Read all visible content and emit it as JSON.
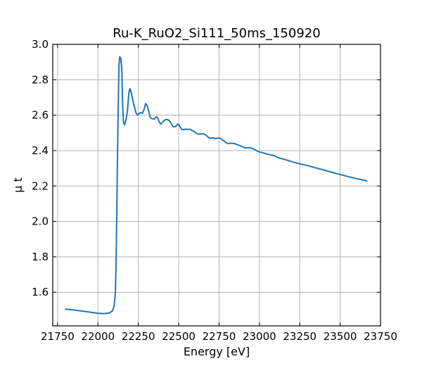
{
  "chart_data": {
    "type": "line",
    "title": "Ru-K_RuO2_Si111_50ms_150920",
    "xlabel": "Energy [eV]",
    "ylabel": "μ t",
    "xlim": [
      21720,
      23750
    ],
    "ylim": [
      1.41,
      3.0
    ],
    "xticks": [
      21750,
      22000,
      22250,
      22500,
      22750,
      23000,
      23250,
      23500,
      23750
    ],
    "yticks": [
      1.6,
      1.8,
      2.0,
      2.2,
      2.4,
      2.6,
      2.8,
      3.0
    ],
    "grid": true,
    "series": [
      {
        "color": "#1f77b4",
        "points": [
          [
            21800,
            1.505
          ],
          [
            21900,
            1.494
          ],
          [
            22000,
            1.481
          ],
          [
            22040,
            1.479
          ],
          [
            22070,
            1.483
          ],
          [
            22090,
            1.495
          ],
          [
            22100,
            1.52
          ],
          [
            22108,
            1.6
          ],
          [
            22112,
            1.75
          ],
          [
            22116,
            2.0
          ],
          [
            22120,
            2.3
          ],
          [
            22125,
            2.6
          ],
          [
            22130,
            2.88
          ],
          [
            22135,
            2.93
          ],
          [
            22142,
            2.92
          ],
          [
            22148,
            2.85
          ],
          [
            22153,
            2.65
          ],
          [
            22158,
            2.56
          ],
          [
            22165,
            2.545
          ],
          [
            22175,
            2.58
          ],
          [
            22182,
            2.62
          ],
          [
            22192,
            2.73
          ],
          [
            22198,
            2.75
          ],
          [
            22205,
            2.73
          ],
          [
            22215,
            2.69
          ],
          [
            22225,
            2.65
          ],
          [
            22235,
            2.615
          ],
          [
            22245,
            2.6
          ],
          [
            22255,
            2.61
          ],
          [
            22265,
            2.615
          ],
          [
            22275,
            2.61
          ],
          [
            22285,
            2.63
          ],
          [
            22295,
            2.665
          ],
          [
            22305,
            2.655
          ],
          [
            22315,
            2.62
          ],
          [
            22325,
            2.585
          ],
          [
            22335,
            2.58
          ],
          [
            22350,
            2.578
          ],
          [
            22360,
            2.59
          ],
          [
            22370,
            2.585
          ],
          [
            22380,
            2.56
          ],
          [
            22390,
            2.55
          ],
          [
            22400,
            2.56
          ],
          [
            22410,
            2.57
          ],
          [
            22420,
            2.575
          ],
          [
            22430,
            2.575
          ],
          [
            22440,
            2.57
          ],
          [
            22450,
            2.56
          ],
          [
            22465,
            2.535
          ],
          [
            22480,
            2.535
          ],
          [
            22495,
            2.55
          ],
          [
            22505,
            2.54
          ],
          [
            22520,
            2.518
          ],
          [
            22540,
            2.52
          ],
          [
            22570,
            2.52
          ],
          [
            22590,
            2.51
          ],
          [
            22620,
            2.492
          ],
          [
            22650,
            2.495
          ],
          [
            22665,
            2.49
          ],
          [
            22690,
            2.47
          ],
          [
            22710,
            2.472
          ],
          [
            22730,
            2.468
          ],
          [
            22750,
            2.472
          ],
          [
            22770,
            2.462
          ],
          [
            22800,
            2.44
          ],
          [
            22830,
            2.442
          ],
          [
            22850,
            2.438
          ],
          [
            22880,
            2.428
          ],
          [
            22910,
            2.415
          ],
          [
            22940,
            2.416
          ],
          [
            22960,
            2.412
          ],
          [
            22990,
            2.395
          ],
          [
            23050,
            2.38
          ],
          [
            23090,
            2.372
          ],
          [
            23120,
            2.358
          ],
          [
            23150,
            2.352
          ],
          [
            23200,
            2.338
          ],
          [
            23250,
            2.325
          ],
          [
            23300,
            2.315
          ],
          [
            23350,
            2.302
          ],
          [
            23400,
            2.29
          ],
          [
            23450,
            2.277
          ],
          [
            23500,
            2.265
          ],
          [
            23550,
            2.253
          ],
          [
            23600,
            2.242
          ],
          [
            23665,
            2.229
          ]
        ]
      }
    ]
  }
}
